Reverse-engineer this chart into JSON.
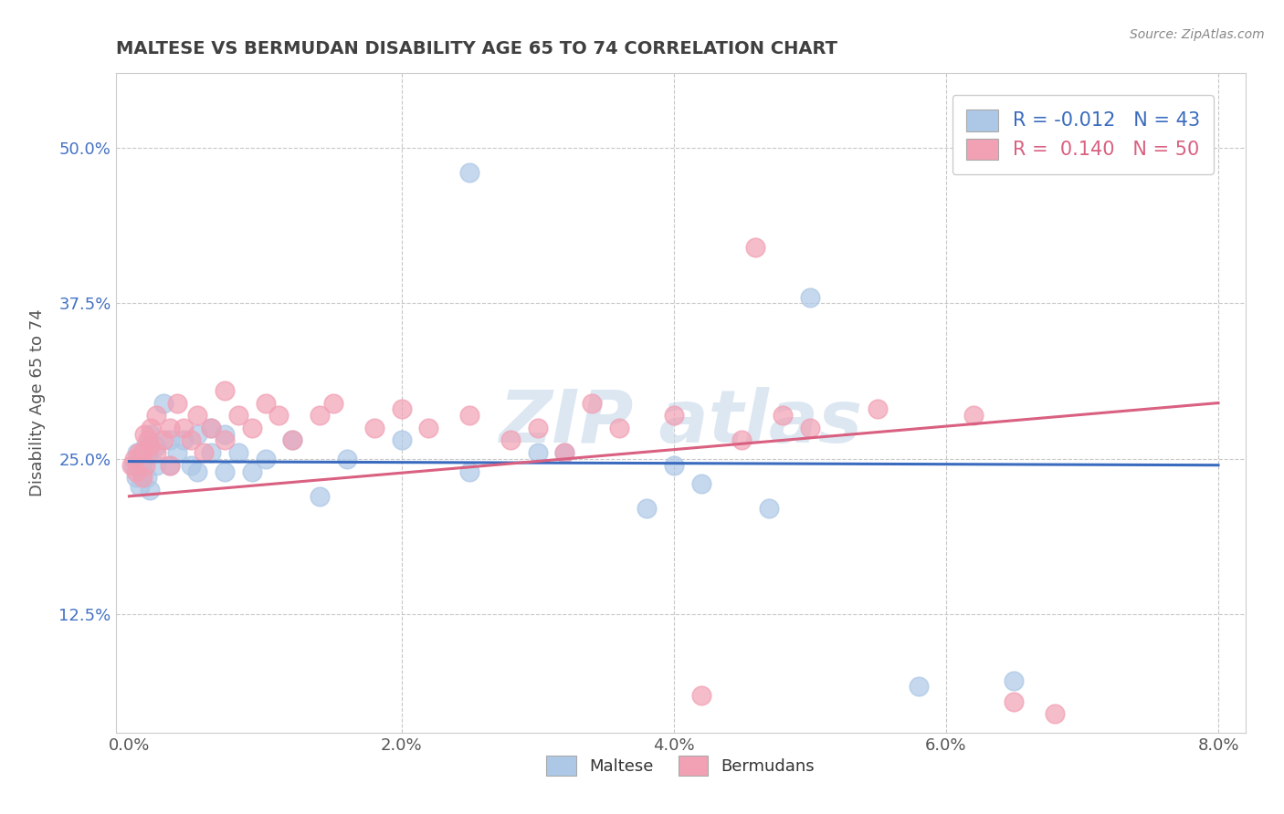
{
  "title": "MALTESE VS BERMUDAN DISABILITY AGE 65 TO 74 CORRELATION CHART",
  "source": "Source: ZipAtlas.com",
  "xlabel_ticks": [
    "0.0%",
    "2.0%",
    "4.0%",
    "6.0%",
    "8.0%"
  ],
  "xlabel_vals": [
    0.0,
    0.02,
    0.04,
    0.06,
    0.08
  ],
  "ylabel": "Disability Age 65 to 74",
  "ylabel_ticks": [
    "12.5%",
    "25.0%",
    "37.5%",
    "50.0%"
  ],
  "ylabel_vals": [
    0.125,
    0.25,
    0.375,
    0.5
  ],
  "xlim": [
    -0.001,
    0.082
  ],
  "ylim": [
    0.03,
    0.56
  ],
  "maltese_R": -0.012,
  "maltese_N": 43,
  "bermudan_R": 0.14,
  "bermudan_N": 50,
  "maltese_color": "#adc8e6",
  "bermudan_color": "#f2a0b4",
  "maltese_line_color": "#3a6bbf",
  "bermudan_line_color": "#d96080",
  "background_color": "#ffffff",
  "grid_color": "#c8c8c8",
  "title_color": "#404040",
  "watermark_color": "#c5d8ea",
  "maltese_x": [
    0.0003,
    0.0005,
    0.0006,
    0.0008,
    0.001,
    0.001,
    0.0012,
    0.0013,
    0.0014,
    0.0015,
    0.0016,
    0.002,
    0.002,
    0.0025,
    0.003,
    0.003,
    0.0035,
    0.004,
    0.0045,
    0.005,
    0.005,
    0.006,
    0.006,
    0.007,
    0.007,
    0.008,
    0.009,
    0.01,
    0.012,
    0.014,
    0.016,
    0.02,
    0.025,
    0.025,
    0.03,
    0.032,
    0.038,
    0.04,
    0.042,
    0.047,
    0.05,
    0.058,
    0.065
  ],
  "maltese_y": [
    0.245,
    0.235,
    0.255,
    0.228,
    0.238,
    0.248,
    0.26,
    0.235,
    0.255,
    0.225,
    0.27,
    0.26,
    0.245,
    0.295,
    0.245,
    0.265,
    0.255,
    0.265,
    0.245,
    0.27,
    0.24,
    0.255,
    0.275,
    0.24,
    0.27,
    0.255,
    0.24,
    0.25,
    0.265,
    0.22,
    0.25,
    0.265,
    0.24,
    0.48,
    0.255,
    0.255,
    0.21,
    0.245,
    0.23,
    0.21,
    0.38,
    0.067,
    0.072
  ],
  "bermudan_x": [
    0.0002,
    0.0004,
    0.0005,
    0.0007,
    0.001,
    0.001,
    0.0011,
    0.0012,
    0.0014,
    0.0015,
    0.0016,
    0.002,
    0.002,
    0.0025,
    0.003,
    0.003,
    0.0035,
    0.004,
    0.0045,
    0.005,
    0.0055,
    0.006,
    0.007,
    0.007,
    0.008,
    0.009,
    0.01,
    0.011,
    0.012,
    0.014,
    0.015,
    0.018,
    0.02,
    0.022,
    0.025,
    0.028,
    0.03,
    0.032,
    0.034,
    0.036,
    0.04,
    0.042,
    0.045,
    0.046,
    0.048,
    0.05,
    0.055,
    0.062,
    0.065,
    0.068
  ],
  "bermudan_y": [
    0.245,
    0.25,
    0.24,
    0.255,
    0.235,
    0.255,
    0.27,
    0.245,
    0.265,
    0.26,
    0.275,
    0.255,
    0.285,
    0.265,
    0.245,
    0.275,
    0.295,
    0.275,
    0.265,
    0.285,
    0.255,
    0.275,
    0.265,
    0.305,
    0.285,
    0.275,
    0.295,
    0.285,
    0.265,
    0.285,
    0.295,
    0.275,
    0.29,
    0.275,
    0.285,
    0.265,
    0.275,
    0.255,
    0.295,
    0.275,
    0.285,
    0.06,
    0.265,
    0.42,
    0.285,
    0.275,
    0.29,
    0.285,
    0.055,
    0.045
  ]
}
